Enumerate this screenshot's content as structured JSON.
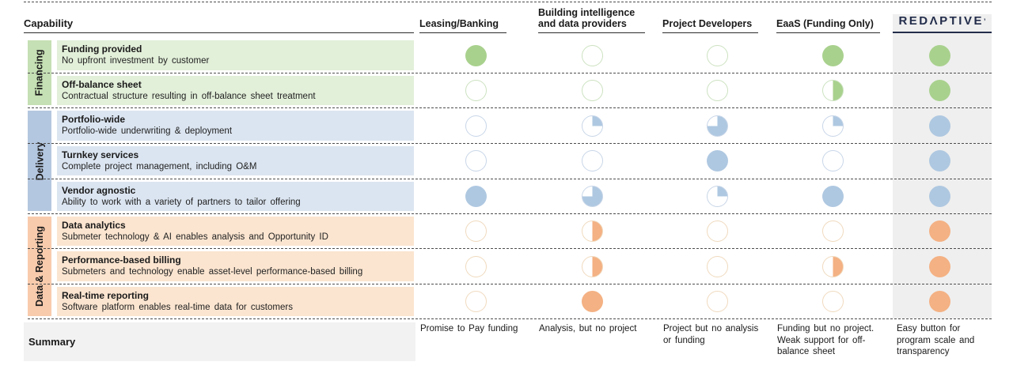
{
  "header": {
    "capability_label": "Capability",
    "columns": [
      {
        "label": "Leasing/Banking"
      },
      {
        "label": "Building intelligence\nand data providers"
      },
      {
        "label": "Project Developers"
      },
      {
        "label": "EaaS (Funding Only)"
      },
      {
        "label": "REDΛPTIVE",
        "logo": true,
        "logo_mark": "’"
      }
    ]
  },
  "palette": {
    "financing": {
      "strip": "#C5E0B4",
      "row": "#E2EFD9",
      "ball": "#A9D18E",
      "ball_border": "#CCE2C0"
    },
    "delivery": {
      "strip": "#B4C7E0",
      "row": "#DBE5F1",
      "ball": "#AFC8E1",
      "ball_border": "#C8D6E8"
    },
    "data_reporting": {
      "strip": "#F8CBAD",
      "row": "#FBE5D0",
      "ball": "#F4B183",
      "ball_border": "#F0DABE"
    },
    "redaptive_navy": "#232D4B",
    "redaptive_band": "#EFEFEF",
    "summary_bg": "#F2F2F2",
    "dash_line": "#4d4d4d"
  },
  "groups": [
    {
      "label": "Financing",
      "palette_key": "financing",
      "rows": [
        {
          "title": "Funding provided",
          "subtitle": "No upfront investment by customer",
          "values": [
            1,
            0,
            0,
            1,
            1
          ]
        },
        {
          "title": "Off-balance sheet",
          "subtitle": "Contractual structure resulting in off-balance sheet treatment",
          "values": [
            0,
            0,
            0,
            0.5,
            1
          ]
        }
      ]
    },
    {
      "label": "Delivery",
      "palette_key": "delivery",
      "rows": [
        {
          "title": "Portfolio-wide",
          "subtitle": "Portfolio-wide underwriting & deployment",
          "values": [
            0,
            0.25,
            0.75,
            0.25,
            1
          ]
        },
        {
          "title": "Turnkey services",
          "subtitle": "Complete project management, including O&M",
          "values": [
            0,
            0,
            1,
            0,
            1
          ]
        },
        {
          "title": "Vendor agnostic",
          "subtitle": "Ability to work with a variety of partners to tailor offering",
          "values": [
            1,
            0.75,
            0.25,
            1,
            1
          ]
        }
      ]
    },
    {
      "label": "Data & Reporting",
      "palette_key": "data_reporting",
      "rows": [
        {
          "title": "Data analytics",
          "subtitle": "Submeter technology & AI enables analysis and Opportunity ID",
          "values": [
            0,
            0.5,
            0,
            0,
            1
          ]
        },
        {
          "title": "Performance-based billing",
          "subtitle": "Submeters and technology enable asset-level performance-based billing",
          "values": [
            0,
            0.5,
            0,
            0.5,
            1
          ]
        },
        {
          "title": "Real-time reporting",
          "subtitle": "Software platform enables real-time data for customers",
          "values": [
            0,
            1,
            0,
            0,
            1
          ]
        }
      ]
    }
  ],
  "ball_legend": "fraction of circle filled: 0 = none, 0.25 = quarter, 0.5 = half, 0.75 = three-quarters, 1 = full",
  "summary": {
    "label": "Summary",
    "cells": [
      "Promise to Pay funding",
      "Analysis, but no project",
      "Project but no analysis\nor funding",
      "Funding but no project.\nWeak support for off-\nbalance sheet",
      "Easy button for\nprogram scale and\ntransparency"
    ]
  }
}
